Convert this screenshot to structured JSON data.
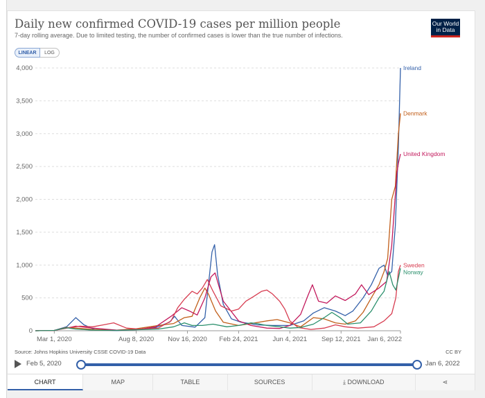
{
  "header": {
    "title": "Daily new confirmed COVID-19 cases per million people",
    "subtitle": "7-day rolling average. Due to limited testing, the number of confirmed cases is lower than the true number of infections.",
    "logo_line1": "Our World",
    "logo_line2": "in Data"
  },
  "scale_toggle": {
    "linear": "LINEAR",
    "log": "LOG",
    "selected": "LINEAR"
  },
  "chart_data": {
    "type": "line",
    "title": "Daily new confirmed COVID-19 cases per million people",
    "xlabel": "",
    "ylabel": "",
    "ylim": [
      0,
      4000
    ],
    "yticks": [
      0,
      500,
      1000,
      1500,
      2000,
      2500,
      3000,
      3500,
      4000
    ],
    "ytick_labels": [
      "0",
      "500",
      "1,000",
      "1,500",
      "2,000",
      "2,500",
      "3,000",
      "3,500",
      "4,000"
    ],
    "xlim": [
      "2020-01-24",
      "2022-01-06"
    ],
    "xtick_labels": [
      "Mar 1, 2020",
      "Aug 8, 2020",
      "Nov 16, 2020",
      "Feb 24, 2021",
      "Jun 4, 2021",
      "Sep 12, 2021",
      "Jan 6, 2022"
    ],
    "xtick_dates": [
      "2020-03-01",
      "2020-08-08",
      "2020-11-16",
      "2021-02-24",
      "2021-06-04",
      "2021-09-12",
      "2022-01-06"
    ],
    "grid": "horizontal dashed",
    "legend": "line-end labels",
    "series": [
      {
        "name": "Ireland",
        "color": "#3360a9",
        "points": [
          [
            "2020-01-24",
            0
          ],
          [
            "2020-03-01",
            5
          ],
          [
            "2020-03-25",
            60
          ],
          [
            "2020-04-12",
            200
          ],
          [
            "2020-04-28",
            90
          ],
          [
            "2020-05-20",
            15
          ],
          [
            "2020-07-01",
            3
          ],
          [
            "2020-08-15",
            20
          ],
          [
            "2020-09-15",
            50
          ],
          [
            "2020-10-12",
            130
          ],
          [
            "2020-10-22",
            220
          ],
          [
            "2020-11-05",
            80
          ],
          [
            "2020-12-01",
            55
          ],
          [
            "2020-12-20",
            200
          ],
          [
            "2020-12-27",
            700
          ],
          [
            "2021-01-03",
            1200
          ],
          [
            "2021-01-08",
            1310
          ],
          [
            "2021-01-14",
            850
          ],
          [
            "2021-01-25",
            400
          ],
          [
            "2021-02-10",
            180
          ],
          [
            "2021-03-01",
            130
          ],
          [
            "2021-04-01",
            90
          ],
          [
            "2021-05-01",
            80
          ],
          [
            "2021-06-04",
            80
          ],
          [
            "2021-07-01",
            150
          ],
          [
            "2021-07-20",
            270
          ],
          [
            "2021-08-10",
            350
          ],
          [
            "2021-09-01",
            300
          ],
          [
            "2021-09-20",
            230
          ],
          [
            "2021-10-05",
            300
          ],
          [
            "2021-10-25",
            500
          ],
          [
            "2021-11-10",
            700
          ],
          [
            "2021-11-25",
            950
          ],
          [
            "2021-12-05",
            1000
          ],
          [
            "2021-12-12",
            840
          ],
          [
            "2021-12-20",
            900
          ],
          [
            "2021-12-27",
            1600
          ],
          [
            "2022-01-02",
            2800
          ],
          [
            "2022-01-06",
            4000
          ]
        ]
      },
      {
        "name": "Denmark",
        "color": "#c15e19",
        "points": [
          [
            "2020-01-24",
            0
          ],
          [
            "2020-03-01",
            5
          ],
          [
            "2020-03-25",
            50
          ],
          [
            "2020-04-12",
            40
          ],
          [
            "2020-05-15",
            20
          ],
          [
            "2020-07-01",
            10
          ],
          [
            "2020-08-08",
            30
          ],
          [
            "2020-09-20",
            80
          ],
          [
            "2020-10-20",
            110
          ],
          [
            "2020-11-10",
            200
          ],
          [
            "2020-11-25",
            220
          ],
          [
            "2020-12-10",
            500
          ],
          [
            "2020-12-20",
            650
          ],
          [
            "2020-12-27",
            560
          ],
          [
            "2021-01-10",
            300
          ],
          [
            "2021-01-25",
            130
          ],
          [
            "2021-02-24",
            80
          ],
          [
            "2021-03-20",
            110
          ],
          [
            "2021-04-20",
            150
          ],
          [
            "2021-05-10",
            170
          ],
          [
            "2021-06-04",
            120
          ],
          [
            "2021-06-25",
            60
          ],
          [
            "2021-07-20",
            200
          ],
          [
            "2021-08-10",
            180
          ],
          [
            "2021-09-01",
            120
          ],
          [
            "2021-09-20",
            100
          ],
          [
            "2021-10-10",
            150
          ],
          [
            "2021-10-25",
            280
          ],
          [
            "2021-11-10",
            500
          ],
          [
            "2021-11-25",
            700
          ],
          [
            "2021-12-05",
            900
          ],
          [
            "2021-12-12",
            1100
          ],
          [
            "2021-12-20",
            2000
          ],
          [
            "2021-12-27",
            2200
          ],
          [
            "2022-01-02",
            3000
          ],
          [
            "2022-01-06",
            3310
          ]
        ]
      },
      {
        "name": "United Kingdom",
        "color": "#c2185b",
        "points": [
          [
            "2020-01-24",
            0
          ],
          [
            "2020-03-01",
            5
          ],
          [
            "2020-03-25",
            40
          ],
          [
            "2020-04-12",
            70
          ],
          [
            "2020-05-15",
            40
          ],
          [
            "2020-07-01",
            10
          ],
          [
            "2020-08-08",
            15
          ],
          [
            "2020-09-15",
            60
          ],
          [
            "2020-10-15",
            220
          ],
          [
            "2020-11-05",
            350
          ],
          [
            "2020-11-20",
            300
          ],
          [
            "2020-12-05",
            240
          ],
          [
            "2020-12-20",
            500
          ],
          [
            "2021-01-01",
            820
          ],
          [
            "2021-01-09",
            880
          ],
          [
            "2021-01-25",
            450
          ],
          [
            "2021-02-24",
            150
          ],
          [
            "2021-03-20",
            80
          ],
          [
            "2021-04-20",
            40
          ],
          [
            "2021-05-15",
            35
          ],
          [
            "2021-06-04",
            80
          ],
          [
            "2021-06-25",
            250
          ],
          [
            "2021-07-10",
            550
          ],
          [
            "2021-07-18",
            700
          ],
          [
            "2021-07-30",
            450
          ],
          [
            "2021-08-15",
            420
          ],
          [
            "2021-09-01",
            530
          ],
          [
            "2021-09-20",
            460
          ],
          [
            "2021-10-10",
            560
          ],
          [
            "2021-10-22",
            700
          ],
          [
            "2021-11-05",
            550
          ],
          [
            "2021-11-25",
            650
          ],
          [
            "2021-12-10",
            750
          ],
          [
            "2021-12-20",
            1300
          ],
          [
            "2021-12-30",
            2400
          ],
          [
            "2022-01-02",
            2550
          ],
          [
            "2022-01-06",
            2690
          ]
        ]
      },
      {
        "name": "Sweden",
        "color": "#d73c50",
        "points": [
          [
            "2020-01-24",
            0
          ],
          [
            "2020-03-01",
            5
          ],
          [
            "2020-03-25",
            40
          ],
          [
            "2020-04-20",
            70
          ],
          [
            "2020-05-15",
            60
          ],
          [
            "2020-06-05",
            90
          ],
          [
            "2020-06-25",
            120
          ],
          [
            "2020-07-20",
            40
          ],
          [
            "2020-08-15",
            25
          ],
          [
            "2020-09-20",
            40
          ],
          [
            "2020-10-15",
            150
          ],
          [
            "2020-10-28",
            350
          ],
          [
            "2020-11-10",
            480
          ],
          [
            "2020-11-25",
            600
          ],
          [
            "2020-12-05",
            560
          ],
          [
            "2020-12-15",
            650
          ],
          [
            "2020-12-25",
            780
          ],
          [
            "2021-01-05",
            600
          ],
          [
            "2021-01-20",
            380
          ],
          [
            "2021-02-10",
            300
          ],
          [
            "2021-02-24",
            330
          ],
          [
            "2021-03-10",
            450
          ],
          [
            "2021-03-25",
            520
          ],
          [
            "2021-04-10",
            600
          ],
          [
            "2021-04-20",
            620
          ],
          [
            "2021-05-01",
            560
          ],
          [
            "2021-05-15",
            450
          ],
          [
            "2021-05-25",
            330
          ],
          [
            "2021-06-04",
            150
          ],
          [
            "2021-06-20",
            50
          ],
          [
            "2021-07-15",
            20
          ],
          [
            "2021-08-10",
            40
          ],
          [
            "2021-09-01",
            90
          ],
          [
            "2021-09-20",
            60
          ],
          [
            "2021-10-15",
            40
          ],
          [
            "2021-11-15",
            60
          ],
          [
            "2021-12-05",
            150
          ],
          [
            "2021-12-20",
            260
          ],
          [
            "2021-12-28",
            500
          ],
          [
            "2022-01-02",
            900
          ],
          [
            "2022-01-06",
            1000
          ]
        ]
      },
      {
        "name": "Norway",
        "color": "#2a8f6c",
        "points": [
          [
            "2020-01-24",
            0
          ],
          [
            "2020-03-01",
            5
          ],
          [
            "2020-03-25",
            45
          ],
          [
            "2020-04-12",
            25
          ],
          [
            "2020-05-15",
            10
          ],
          [
            "2020-07-01",
            5
          ],
          [
            "2020-08-08",
            15
          ],
          [
            "2020-09-20",
            25
          ],
          [
            "2020-10-20",
            60
          ],
          [
            "2020-11-10",
            120
          ],
          [
            "2020-11-25",
            80
          ],
          [
            "2020-12-15",
            80
          ],
          [
            "2021-01-05",
            100
          ],
          [
            "2021-02-01",
            60
          ],
          [
            "2021-02-24",
            80
          ],
          [
            "2021-03-20",
            120
          ],
          [
            "2021-04-01",
            110
          ],
          [
            "2021-04-20",
            80
          ],
          [
            "2021-05-15",
            60
          ],
          [
            "2021-06-04",
            40
          ],
          [
            "2021-06-25",
            50
          ],
          [
            "2021-07-20",
            100
          ],
          [
            "2021-08-10",
            200
          ],
          [
            "2021-08-25",
            280
          ],
          [
            "2021-09-10",
            200
          ],
          [
            "2021-09-25",
            100
          ],
          [
            "2021-10-20",
            120
          ],
          [
            "2021-11-10",
            300
          ],
          [
            "2021-11-25",
            500
          ],
          [
            "2021-12-05",
            600
          ],
          [
            "2021-12-15",
            900
          ],
          [
            "2021-12-22",
            700
          ],
          [
            "2021-12-28",
            620
          ],
          [
            "2022-01-02",
            800
          ],
          [
            "2022-01-06",
            950
          ]
        ]
      }
    ]
  },
  "footer": {
    "source": "Source: Johns Hopkins University CSSE COVID-19 Data",
    "license": "CC BY"
  },
  "timeline": {
    "start": "Feb 5, 2020",
    "end": "Jan 6, 2022",
    "start_fraction": 0.0,
    "end_fraction": 1.0
  },
  "tabs": [
    "CHART",
    "MAP",
    "TABLE",
    "SOURCES",
    "DOWNLOAD"
  ],
  "active_tab": "CHART",
  "icons": {
    "download": "download-icon",
    "share": "share-icon",
    "play": "play-icon"
  }
}
